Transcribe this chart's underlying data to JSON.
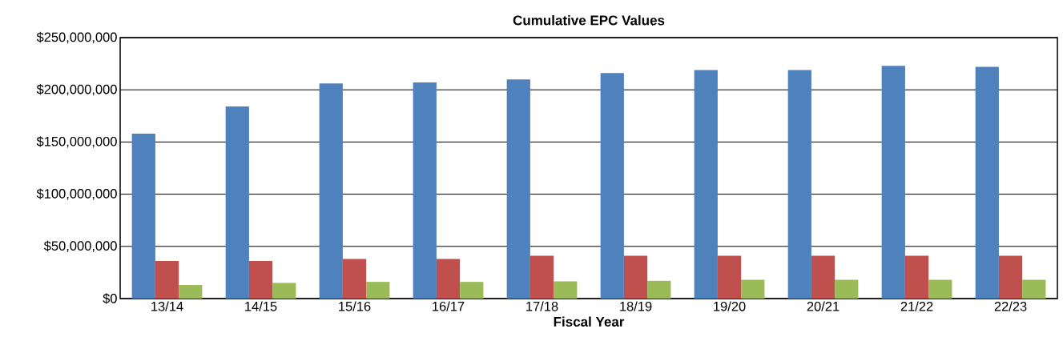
{
  "chart_data": {
    "type": "bar",
    "title": "Cumulative EPC Values",
    "xlabel": "Fiscal Year",
    "categories": [
      "13/14",
      "14/15",
      "15/16",
      "16/17",
      "17/18",
      "18/19",
      "19/20",
      "20/21",
      "21/22",
      "22/23"
    ],
    "series": [
      {
        "color": "#4f81bd",
        "values": [
          158000000,
          184000000,
          206000000,
          207000000,
          210000000,
          216000000,
          219000000,
          219000000,
          223000000,
          222000000
        ]
      },
      {
        "color": "#c0504d",
        "values": [
          36000000,
          36000000,
          38000000,
          38000000,
          41000000,
          41000000,
          41000000,
          41000000,
          41000000,
          41000000
        ]
      },
      {
        "color": "#9bbb59",
        "values": [
          13000000,
          15000000,
          16000000,
          16000000,
          16500000,
          17000000,
          18000000,
          18000000,
          18000000,
          18000000
        ]
      }
    ],
    "ylim": [
      0,
      250000000
    ],
    "yticks": [
      {
        "value": 0,
        "label": "$0"
      },
      {
        "value": 50000000,
        "label": "$50,000,000"
      },
      {
        "value": 100000000,
        "label": "$100,000,000"
      },
      {
        "value": 150000000,
        "label": "$150,000,000"
      },
      {
        "value": 200000000,
        "label": "$200,000,000"
      },
      {
        "value": 250000000,
        "label": "$250,000,000"
      }
    ],
    "grid": "y"
  }
}
